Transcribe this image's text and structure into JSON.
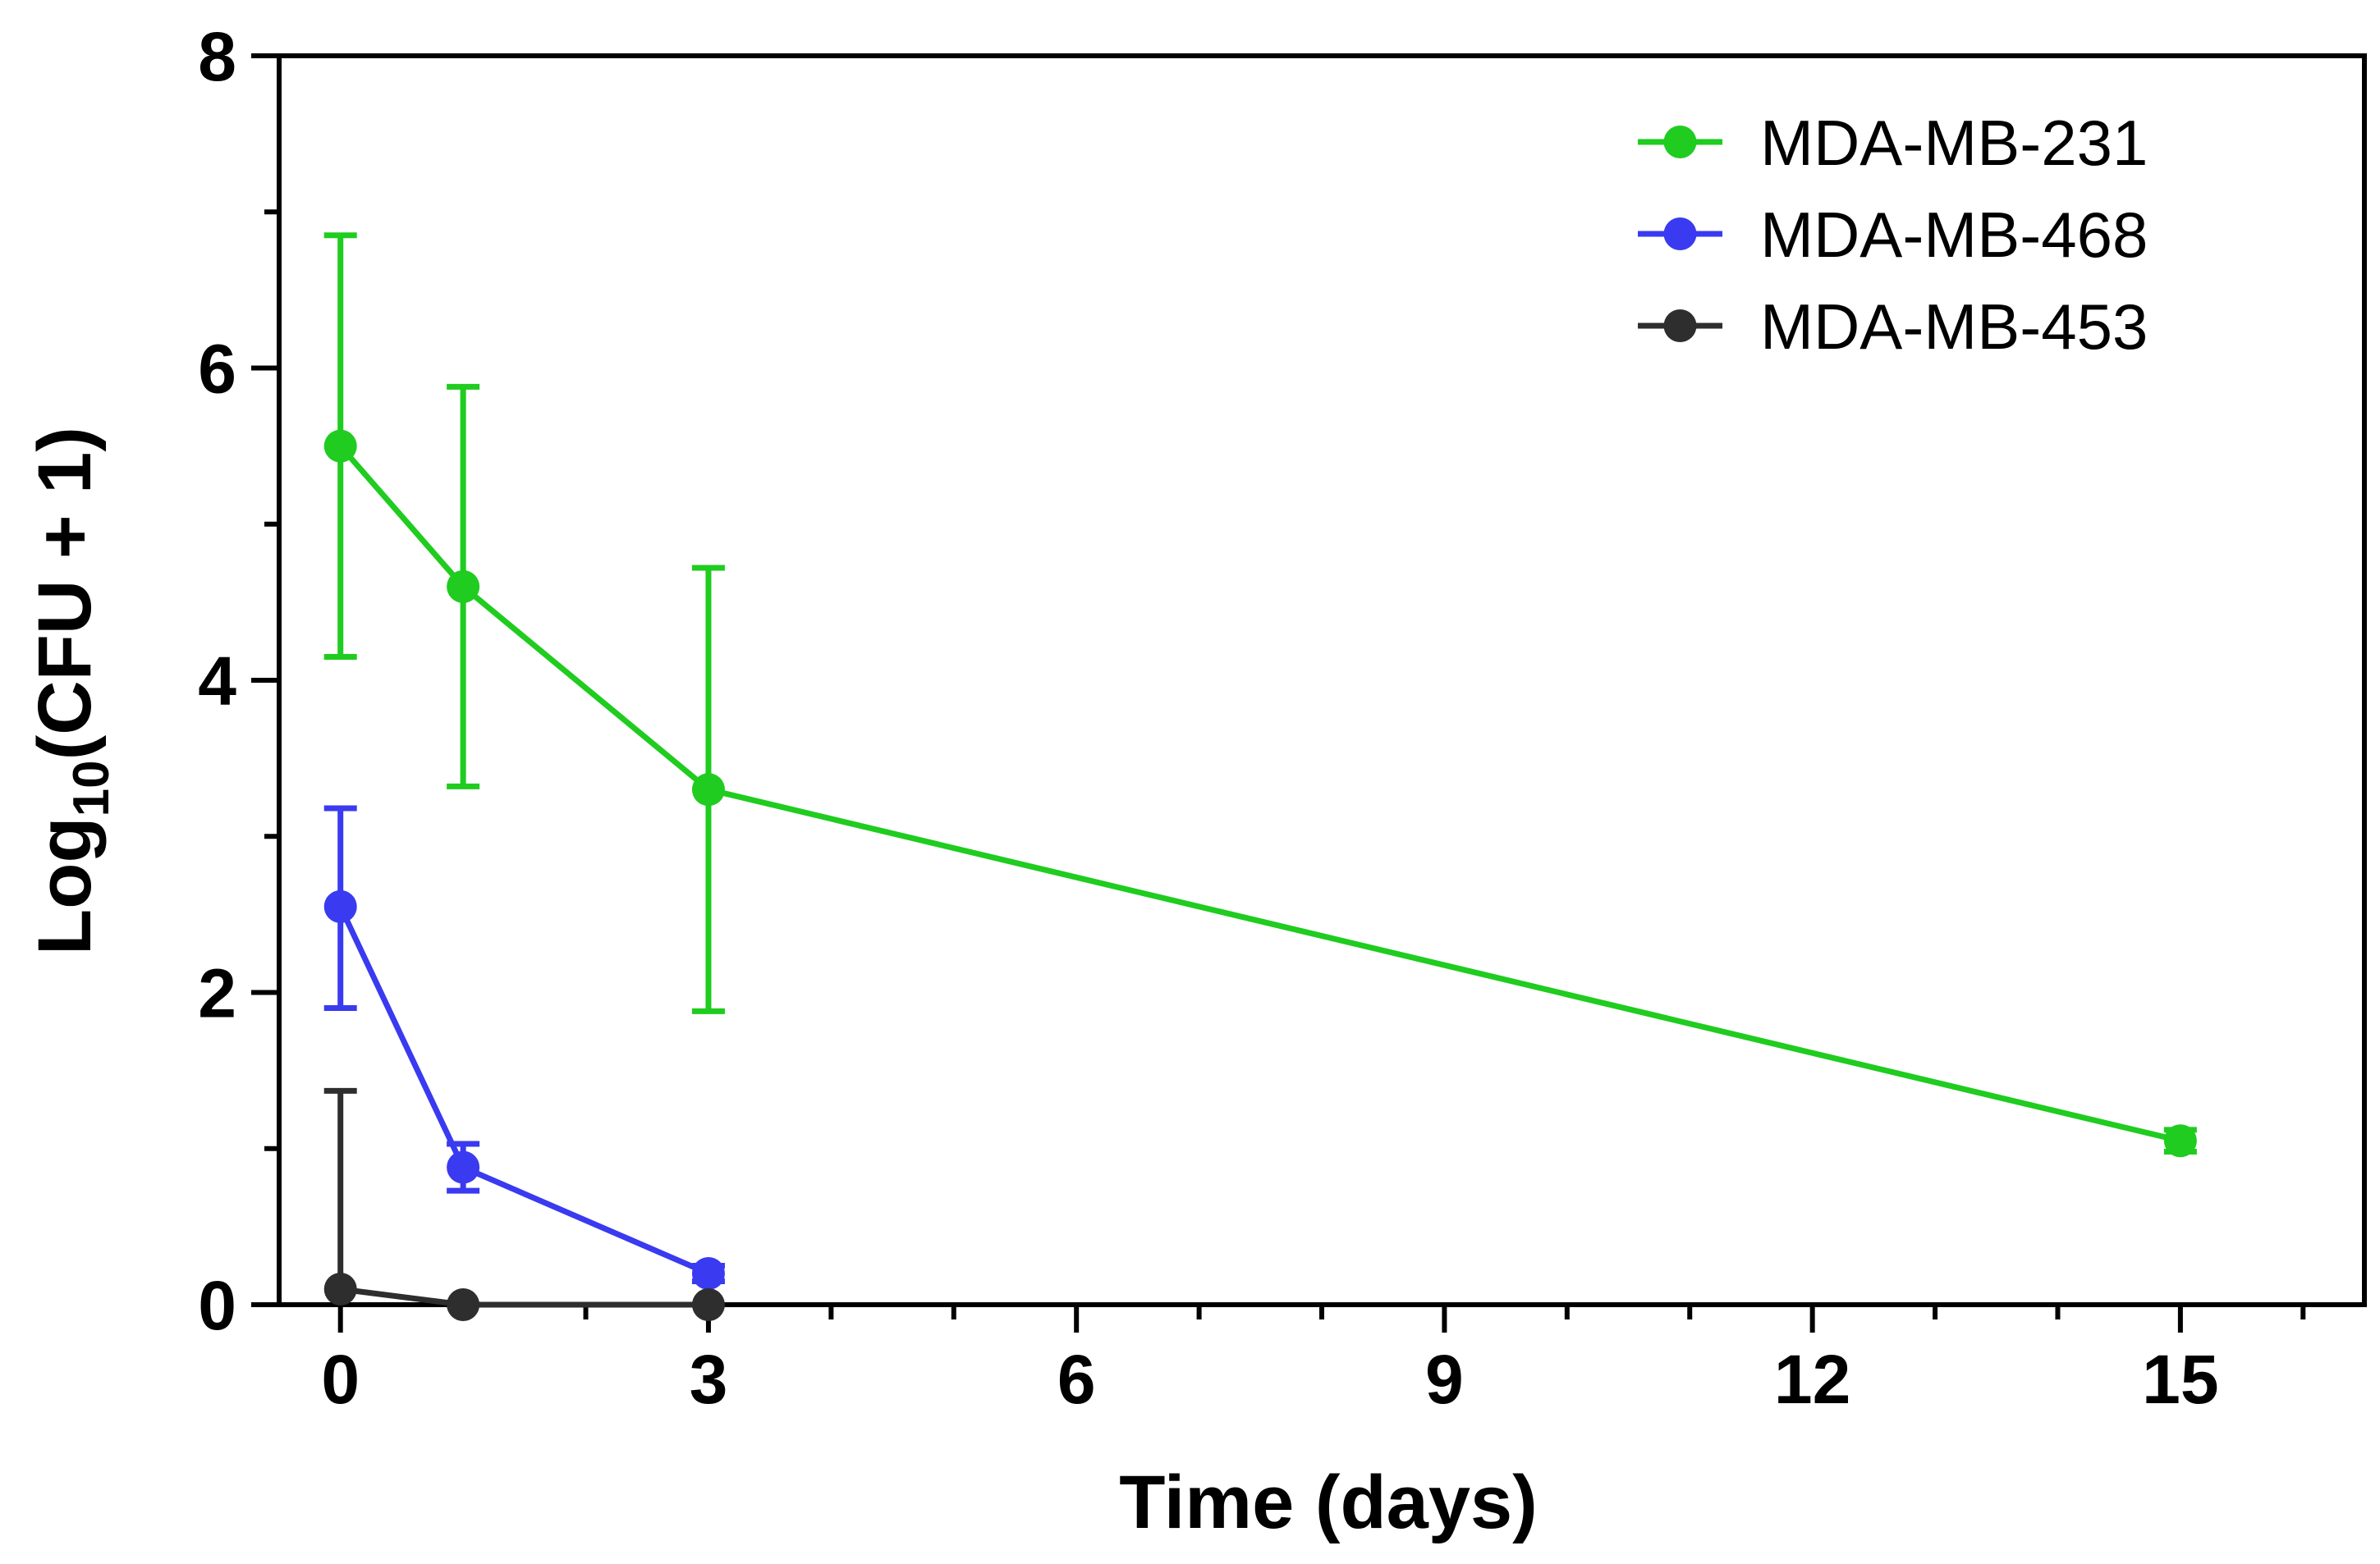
{
  "chart_data": {
    "type": "line",
    "title": "",
    "xlabel": "Time (days)",
    "ylabel": {
      "base": "Log",
      "subscript": "10",
      "rest": "(CFU + 1)"
    },
    "xlim": [
      -0.5,
      16.5
    ],
    "ylim": [
      0,
      8
    ],
    "x_ticks": [
      0,
      3,
      6,
      9,
      12,
      15
    ],
    "x_minor_ticks": [
      1,
      2,
      4,
      5,
      7,
      8,
      10,
      11,
      13,
      14,
      16
    ],
    "y_ticks": [
      0,
      2,
      4,
      6,
      8
    ],
    "y_minor_ticks": [
      1,
      3,
      5,
      7
    ],
    "x_tick_labels": [
      "0",
      "3",
      "6",
      "9",
      "12",
      "15"
    ],
    "y_tick_labels": [
      "0",
      "2",
      "4",
      "6",
      "8"
    ],
    "grid": false,
    "legend_position": "top-right",
    "series": [
      {
        "name": "MDA-MB-231",
        "color": "#1fcc1f",
        "x": [
          0,
          1,
          3,
          15
        ],
        "values": [
          5.5,
          4.6,
          3.3,
          1.05
        ],
        "err_low": [
          1.35,
          1.28,
          1.42,
          0.07
        ],
        "err_high": [
          1.35,
          1.28,
          1.42,
          0.07
        ]
      },
      {
        "name": "MDA-MB-468",
        "color": "#3a3af0",
        "x": [
          0,
          1,
          3
        ],
        "values": [
          2.55,
          0.88,
          0.2
        ],
        "err_low": [
          0.65,
          0.15,
          0.05
        ],
        "err_high": [
          0.63,
          0.15,
          0.05
        ]
      },
      {
        "name": "MDA-MB-453",
        "color": "#2e2e2e",
        "x": [
          0,
          1,
          3
        ],
        "values": [
          0.1,
          0.0,
          0.0
        ],
        "err_low": [
          0.0,
          0.0,
          0.0
        ],
        "err_high": [
          1.27,
          0.0,
          0.0
        ]
      }
    ]
  }
}
